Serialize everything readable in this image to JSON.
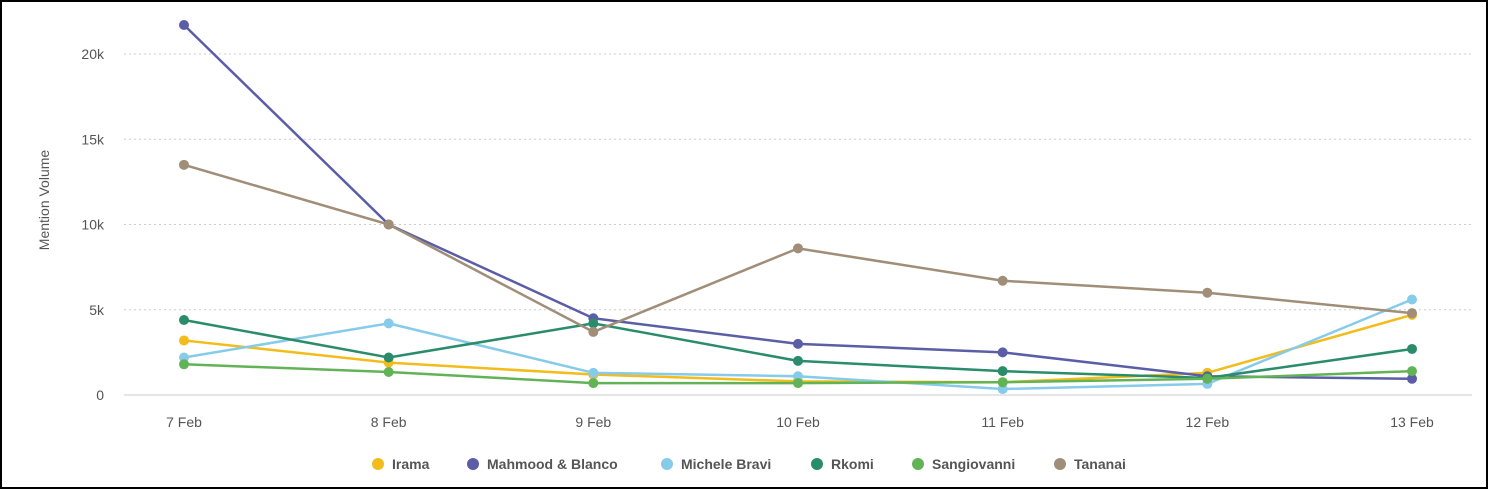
{
  "chart_data": {
    "type": "line",
    "ylabel": "Mention Volume",
    "xlabel": "",
    "ylim": [
      0,
      22000
    ],
    "yticks": [
      0,
      5000,
      10000,
      15000,
      20000
    ],
    "ytick_labels": [
      "0",
      "5k",
      "10k",
      "15k",
      "20k"
    ],
    "categories": [
      "7 Feb",
      "8 Feb",
      "9 Feb",
      "10 Feb",
      "11 Feb",
      "12 Feb",
      "13 Feb"
    ],
    "grid": true,
    "legend": "bottom-center",
    "series": [
      {
        "name": "Irama",
        "color": "#f2bc1b",
        "values": [
          3200,
          1900,
          1200,
          800,
          750,
          1300,
          4700
        ]
      },
      {
        "name": "Mahmood & Blanco",
        "color": "#5b5ea6",
        "values": [
          21700,
          10000,
          4500,
          3000,
          2500,
          1100,
          950
        ]
      },
      {
        "name": "Michele Bravi",
        "color": "#86cbea",
        "values": [
          2200,
          4200,
          1300,
          1100,
          350,
          650,
          5600
        ]
      },
      {
        "name": "Rkomi",
        "color": "#2a8c6a",
        "values": [
          4400,
          2200,
          4200,
          2000,
          1400,
          1000,
          2700
        ]
      },
      {
        "name": "Sangiovanni",
        "color": "#62b356",
        "values": [
          1800,
          1350,
          700,
          700,
          750,
          950,
          1400
        ]
      },
      {
        "name": "Tananai",
        "color": "#a08e78",
        "values": [
          13500,
          10000,
          3700,
          8600,
          6700,
          6000,
          4800
        ]
      }
    ]
  }
}
